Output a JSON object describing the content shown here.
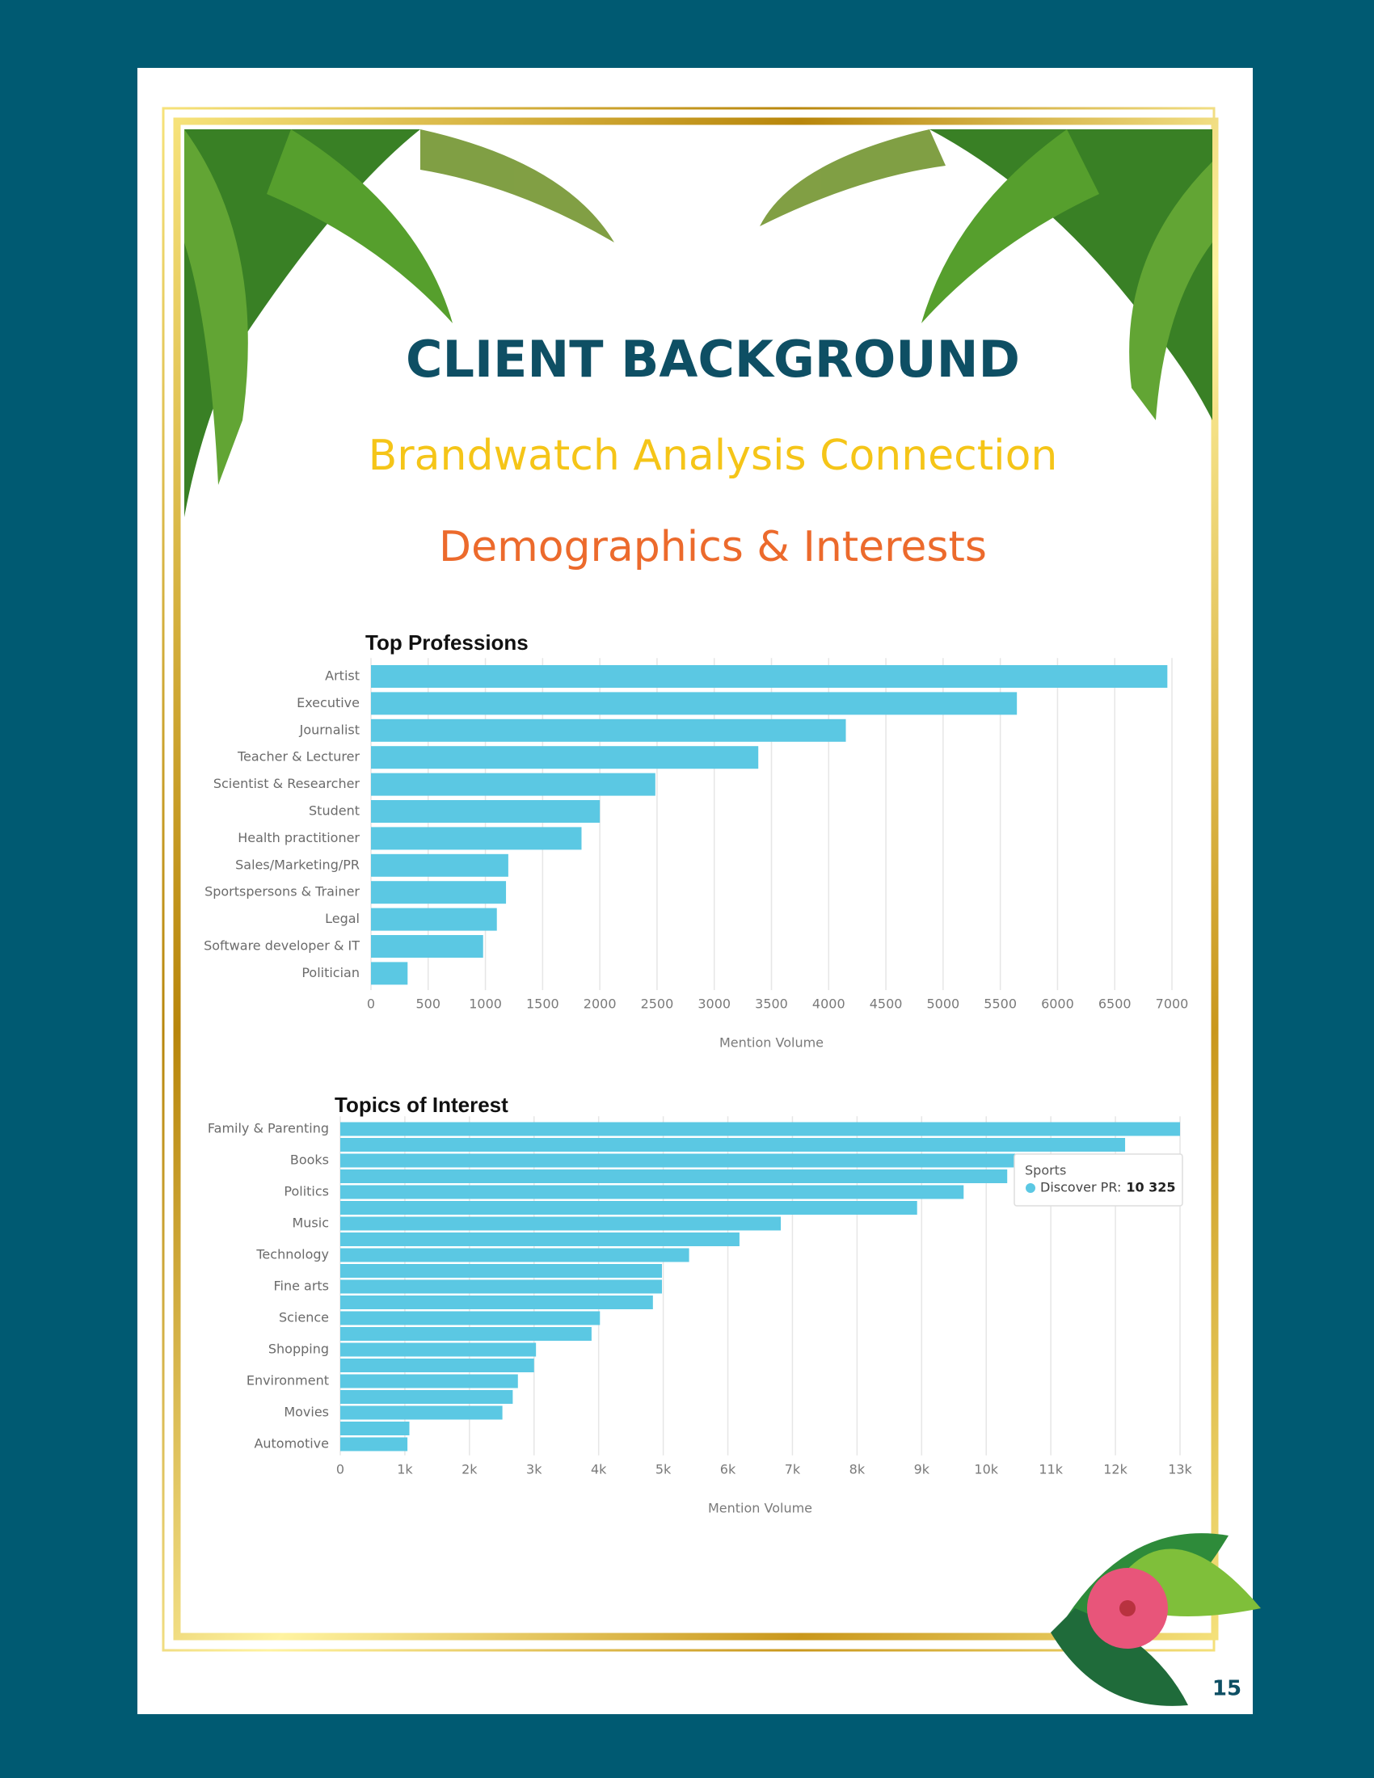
{
  "page": {
    "title": "CLIENT BACKGROUND",
    "subtitle": "Brandwatch Analysis Connection",
    "heading": "Demographics & Interests",
    "page_number": "15"
  },
  "chart_data": [
    {
      "type": "hbar",
      "title": "Top Professions",
      "xlabel": "Mention Volume",
      "color": "#5bc8e3",
      "grid": true,
      "categories": [
        "Artist",
        "Executive",
        "Journalist",
        "Teacher & Lecturer",
        "Scientist & Researcher",
        "Student",
        "Health practitioner",
        "Sales/Marketing/PR",
        "Sportspersons & Trainer",
        "Legal",
        "Software developer & IT",
        "Politician"
      ],
      "values": [
        6960,
        5645,
        4150,
        3385,
        2485,
        2000,
        1840,
        1200,
        1180,
        1100,
        980,
        320
      ],
      "xlim": [
        0,
        7000
      ],
      "xticks": [
        0,
        500,
        1000,
        1500,
        2000,
        2500,
        3000,
        3500,
        4000,
        4500,
        5000,
        5500,
        6000,
        6500,
        7000
      ]
    },
    {
      "type": "hbar",
      "title": "Topics of Interest",
      "xlabel": "Mention Volume",
      "color": "#5bc8e3",
      "grid": true,
      "categories": [
        "Family & Parenting",
        null,
        "Books",
        null,
        "Politics",
        null,
        "Music",
        null,
        "Technology",
        null,
        "Fine arts",
        null,
        "Science",
        null,
        "Shopping",
        null,
        "Environment",
        null,
        "Movies",
        null,
        "Automotive"
      ],
      "values": [
        13000,
        12150,
        10450,
        10325,
        9650,
        8930,
        6820,
        6180,
        5400,
        4980,
        4980,
        4840,
        4020,
        3890,
        3030,
        3000,
        2750,
        2670,
        2510,
        1070,
        1040
      ],
      "xlim": [
        0,
        13000
      ],
      "xticks": [
        0,
        {
          "value": 1000,
          "label": "1k"
        },
        {
          "value": 2000,
          "label": "2k"
        },
        {
          "value": 3000,
          "label": "3k"
        },
        {
          "value": 4000,
          "label": "4k"
        },
        {
          "value": 5000,
          "label": "5k"
        },
        {
          "value": 6000,
          "label": "6k"
        },
        {
          "value": 7000,
          "label": "7k"
        },
        {
          "value": 8000,
          "label": "8k"
        },
        {
          "value": 9000,
          "label": "9k"
        },
        {
          "value": 10000,
          "label": "10k"
        },
        {
          "value": 11000,
          "label": "11k"
        },
        {
          "value": 12000,
          "label": "12k"
        },
        {
          "value": 13000,
          "label": "13k"
        }
      ],
      "tooltip": {
        "title": "Sports",
        "series": "Discover PR:",
        "value": 10325,
        "value_label": "10 325"
      }
    }
  ]
}
